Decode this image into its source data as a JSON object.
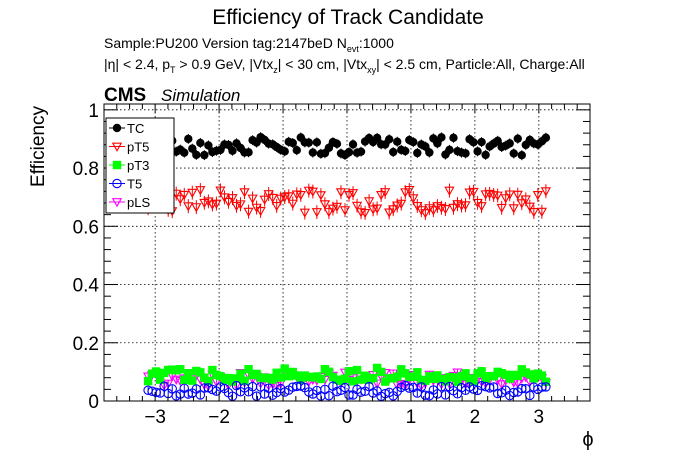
{
  "chart_data": {
    "type": "scatter",
    "title": "Efficiency of Track Candidate",
    "info_line1": "Sample:PU200   Version tag:2147beD  N",
    "info_line1_sub": "evt",
    "info_line1_tail": ":1000",
    "info_line2": {
      "eta": "|η| < 2.4, p",
      "pt_sub": "T",
      "pt_tail": " > 0.9 GeV, |Vtx",
      "vz_sub": "z",
      "vz_tail": "| < 30 cm, |Vtx",
      "vxy_sub": "xy",
      "vxy_tail": "| < 2.5 cm, Particle:All, Charge:All"
    },
    "cms_label": "CMS",
    "simulation_label": "Simulation",
    "xlabel": "ϕ",
    "ylabel": "Efficiency",
    "xlim": [
      -3.8,
      3.8
    ],
    "ylim": [
      0,
      1.02
    ],
    "xticks": [
      -3,
      -2,
      -1,
      0,
      1,
      2,
      3
    ],
    "xtick_labels": [
      "−3",
      "−2",
      "−1",
      "0",
      "1",
      "2",
      "3"
    ],
    "yticks": [
      0,
      0.2,
      0.4,
      0.6,
      0.8,
      1
    ],
    "ytick_labels": [
      "0",
      "0.2",
      "0.4",
      "0.6",
      "0.8",
      "1"
    ],
    "grid": true,
    "legend_position": "top-left",
    "nbins": 100,
    "bin_range": [
      -3.1416,
      3.1416
    ],
    "series": [
      {
        "name": "TC",
        "color": "#000000",
        "marker": "filled-circle",
        "mean": 0.875,
        "spread": 0.02,
        "err": 0.017
      },
      {
        "name": "pT5",
        "color": "#ff0000",
        "marker": "open-triangle-down",
        "mean": 0.685,
        "spread": 0.025,
        "err": 0.024
      },
      {
        "name": "pT3",
        "color": "#00ff00",
        "marker": "filled-square",
        "mean": 0.09,
        "spread": 0.015,
        "err": 0.014
      },
      {
        "name": "T5",
        "color": "#0000ff",
        "marker": "open-circle",
        "mean": 0.035,
        "spread": 0.012,
        "err": 0.012
      },
      {
        "name": "pLS",
        "color": "#ff00ff",
        "marker": "open-triangle-down",
        "mean": 0.075,
        "spread": 0.015,
        "err": 0.013
      }
    ]
  }
}
